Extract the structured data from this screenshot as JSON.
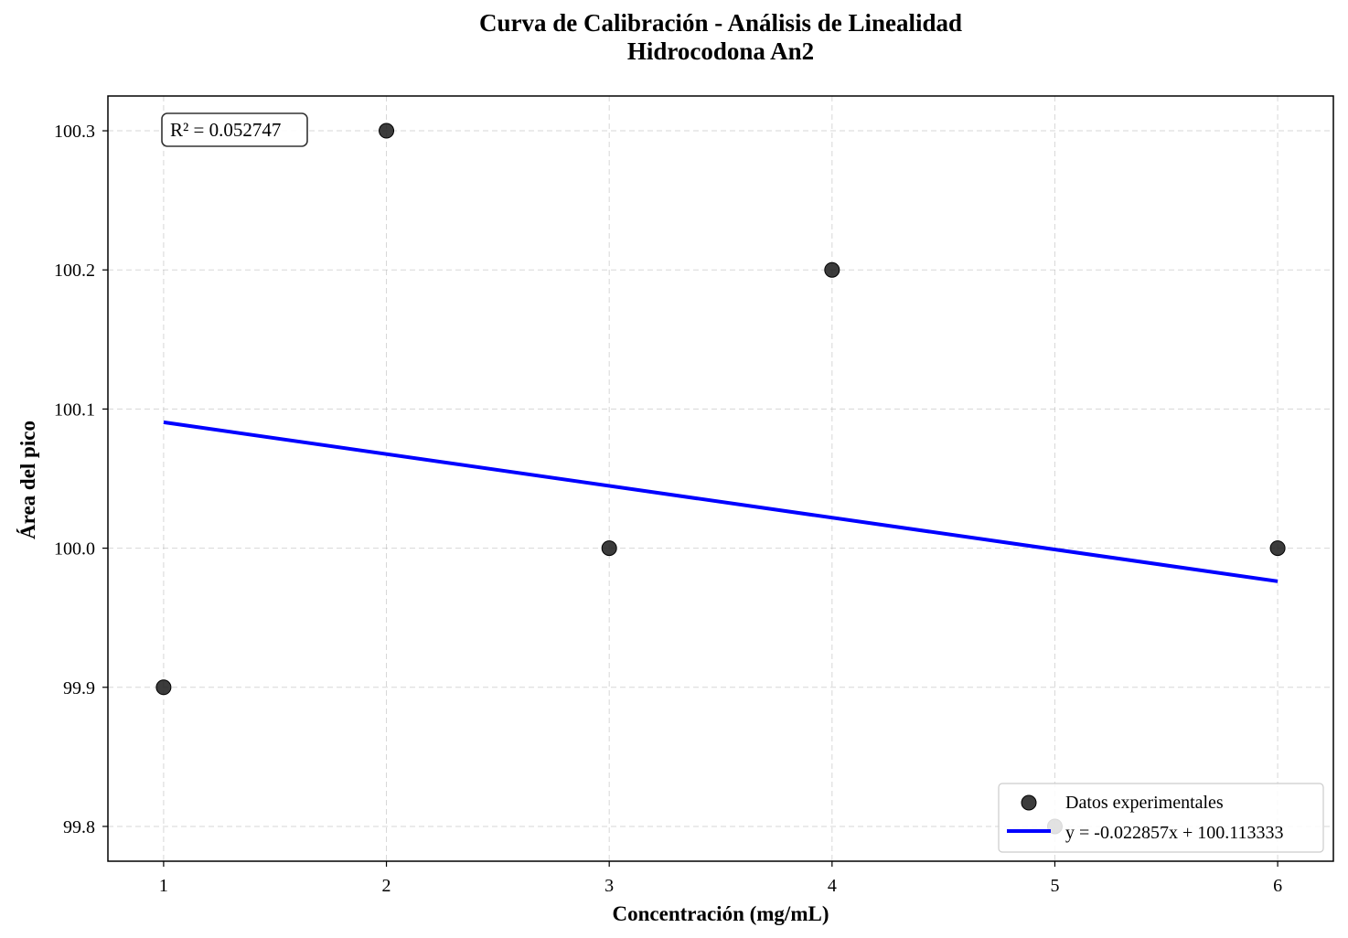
{
  "chart_data": {
    "type": "scatter",
    "title_line1": "Curva de Calibración - Análisis de Linealidad",
    "title_line2": "Hidrocodona An2",
    "xlabel": "Concentración (mg/mL)",
    "ylabel": "Área del pico",
    "xlim": [
      0.75,
      6.25
    ],
    "ylim": [
      99.775,
      100.325
    ],
    "xticks": [
      1,
      2,
      3,
      4,
      5,
      6
    ],
    "xtick_labels": [
      "1",
      "2",
      "3",
      "4",
      "5",
      "6"
    ],
    "yticks": [
      99.8,
      99.9,
      100.0,
      100.1,
      100.2,
      100.3
    ],
    "ytick_labels": [
      "99.8",
      "99.9",
      "100.0",
      "100.1",
      "100.2",
      "100.3"
    ],
    "grid": true,
    "legend_position": "lower-right",
    "series": [
      {
        "name": "Datos experimentales",
        "kind": "scatter",
        "color": "#1a1a1a",
        "x": [
          1,
          2,
          3,
          4,
          5,
          6
        ],
        "y": [
          99.9,
          100.3,
          100.0,
          100.2,
          99.8,
          100.0
        ]
      },
      {
        "name": "y = -0.022857x + 100.113333",
        "kind": "line",
        "color": "#0000ff",
        "x": [
          1,
          6
        ],
        "y": [
          100.090476,
          99.976191
        ]
      }
    ],
    "annotation": "R² = 0.052747"
  }
}
